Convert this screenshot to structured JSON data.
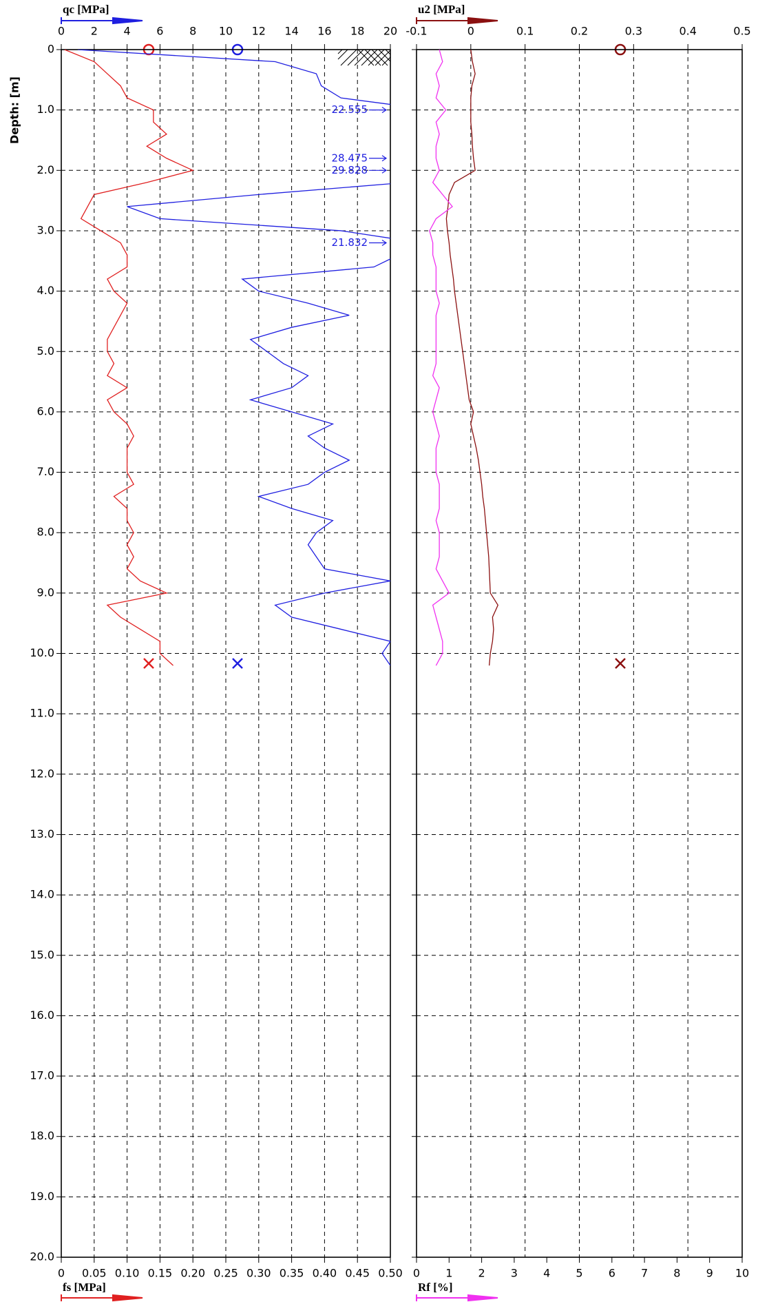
{
  "chart_data": [
    {
      "type": "line",
      "y_label": "Depth: [m]",
      "ylim": [
        0,
        20
      ],
      "yticks": [
        0,
        {
          "value": 1,
          "label": "1.0"
        },
        {
          "value": 2,
          "label": "2.0"
        },
        {
          "value": 3,
          "label": "3.0"
        },
        {
          "value": 4,
          "label": "4.0"
        },
        {
          "value": 5,
          "label": "5.0"
        },
        {
          "value": 6,
          "label": "6.0"
        },
        {
          "value": 7,
          "label": "7.0"
        },
        {
          "value": 8,
          "label": "8.0"
        },
        {
          "value": 9,
          "label": "9.0"
        },
        {
          "value": 10,
          "label": "10.0"
        },
        {
          "value": 11,
          "label": "11.0"
        },
        {
          "value": 12,
          "label": "12.0"
        },
        {
          "value": 13,
          "label": "13.0"
        },
        {
          "value": 14,
          "label": "14.0"
        },
        {
          "value": 15,
          "label": "15.0"
        },
        {
          "value": 16,
          "label": "16.0"
        },
        {
          "value": 17,
          "label": "17.0"
        },
        {
          "value": 18,
          "label": "18.0"
        },
        {
          "value": 19,
          "label": "19.0"
        },
        {
          "value": 20,
          "label": "20.0"
        }
      ],
      "x": [
        0,
        0.2,
        0.4,
        0.6,
        0.8,
        1.0,
        1.2,
        1.4,
        1.6,
        1.8,
        2.0,
        2.2,
        2.4,
        2.6,
        2.8,
        3.0,
        3.2,
        3.4,
        3.6,
        3.8,
        4.0,
        4.2,
        4.4,
        4.6,
        4.8,
        5.0,
        5.2,
        5.4,
        5.6,
        5.8,
        6.0,
        6.2,
        6.4,
        6.6,
        6.8,
        7.0,
        7.2,
        7.4,
        7.6,
        7.8,
        8.0,
        8.2,
        8.4,
        8.6,
        8.8,
        9.0,
        9.2,
        9.4,
        9.6,
        9.8,
        10.0,
        10.2
      ],
      "top_axis": {
        "label": "qc [MPa]",
        "lim": [
          0,
          20
        ],
        "ticks": [
          0,
          2,
          4,
          6,
          8,
          10,
          12,
          14,
          16,
          18,
          20
        ]
      },
      "bottom_axis": {
        "label": "fs [MPa]",
        "lim": [
          0,
          0.5
        ],
        "ticks": [
          0,
          0.05,
          {
            "value": 0.1,
            "label": "0.10"
          },
          0.15,
          {
            "value": 0.2,
            "label": "0.20"
          },
          0.25,
          {
            "value": 0.3,
            "label": "0.30"
          },
          0.35,
          {
            "value": 0.4,
            "label": "0.40"
          },
          0.45,
          {
            "value": 0.5,
            "label": "0.50"
          }
        ]
      },
      "grid": true,
      "series": [
        {
          "axis": "top",
          "color": "#1f1fe0",
          "values": [
            1.0,
            13,
            15.5,
            15.8,
            17,
            22.555,
            22,
            22,
            21,
            28.475,
            29.828,
            21,
            12,
            4,
            6,
            17,
            21.832,
            20.5,
            19,
            11,
            12,
            15,
            17.5,
            14,
            11.5,
            12.5,
            13.5,
            15,
            14,
            11.5,
            14,
            16.5,
            15,
            16,
            17.5,
            16,
            15,
            12,
            14,
            16.5,
            15.5,
            15,
            15.5,
            16,
            20,
            16,
            13,
            14,
            17,
            20,
            19.5,
            20
          ]
        },
        {
          "axis": "bottom",
          "color": "#e02020",
          "values": [
            0.005,
            0.05,
            0.07,
            0.09,
            0.1,
            0.14,
            0.14,
            0.16,
            0.13,
            0.16,
            0.2,
            0.13,
            0.05,
            0.04,
            0.03,
            0.06,
            0.09,
            0.1,
            0.1,
            0.07,
            0.08,
            0.1,
            0.09,
            0.08,
            0.07,
            0.07,
            0.08,
            0.07,
            0.1,
            0.07,
            0.08,
            0.1,
            0.11,
            0.1,
            0.1,
            0.1,
            0.11,
            0.08,
            0.1,
            0.1,
            0.11,
            0.1,
            0.11,
            0.1,
            0.12,
            0.16,
            0.07,
            0.09,
            0.12,
            0.15,
            0.15,
            0.17
          ]
        }
      ],
      "annotations": [
        22.555,
        28.475,
        29.828,
        21.832
      ]
    },
    {
      "type": "line",
      "ylim": [
        0,
        20
      ],
      "x": [
        0,
        0.2,
        0.4,
        0.6,
        0.8,
        1.0,
        1.2,
        1.4,
        1.6,
        1.8,
        2.0,
        2.2,
        2.4,
        2.6,
        2.8,
        3.0,
        3.2,
        3.4,
        3.6,
        3.8,
        4.0,
        4.2,
        4.4,
        4.6,
        4.8,
        5.0,
        5.2,
        5.4,
        5.6,
        5.8,
        6.0,
        6.2,
        6.4,
        6.6,
        6.8,
        7.0,
        7.2,
        7.4,
        7.6,
        7.8,
        8.0,
        8.2,
        8.4,
        8.6,
        8.8,
        9.0,
        9.2,
        9.4,
        9.6,
        9.8,
        10.0,
        10.2
      ],
      "top_axis": {
        "label": "u2 [MPa]",
        "lim": [
          -0.1,
          0.5
        ],
        "ticks": [
          -0.1,
          0,
          0.1,
          0.2,
          0.3,
          0.4,
          0.5
        ]
      },
      "bottom_axis": {
        "label": "Rf [%]",
        "lim": [
          0,
          10
        ],
        "ticks": [
          0,
          1,
          2,
          3,
          4,
          5,
          6,
          7,
          8,
          9,
          10
        ]
      },
      "grid": true,
      "series": [
        {
          "axis": "top",
          "color": "#8b1010",
          "values": [
            0,
            0.003,
            0.008,
            0.002,
            0,
            0,
            0,
            0.002,
            0.003,
            0.005,
            0.008,
            -0.03,
            -0.04,
            -0.042,
            -0.045,
            -0.043,
            -0.04,
            -0.038,
            -0.035,
            -0.032,
            -0.03,
            -0.027,
            -0.024,
            -0.021,
            -0.018,
            -0.015,
            -0.012,
            -0.009,
            -0.006,
            -0.003,
            0.005,
            0,
            0.005,
            0.01,
            0.014,
            0.017,
            0.02,
            0.022,
            0.025,
            0.027,
            0.029,
            0.031,
            0.033,
            0.034,
            0.035,
            0.036,
            0.05,
            0.04,
            0.042,
            0.04,
            0.036,
            0.034
          ]
        },
        {
          "axis": "bottom",
          "color": "#f030f0",
          "values": [
            0.7,
            0.8,
            0.6,
            0.7,
            0.6,
            0.9,
            0.6,
            0.7,
            0.6,
            0.6,
            0.7,
            0.5,
            0.8,
            1.1,
            0.6,
            0.4,
            0.5,
            0.5,
            0.6,
            0.6,
            0.6,
            0.7,
            0.6,
            0.6,
            0.6,
            0.6,
            0.6,
            0.5,
            0.7,
            0.6,
            0.5,
            0.6,
            0.7,
            0.6,
            0.6,
            0.6,
            0.7,
            0.7,
            0.7,
            0.6,
            0.7,
            0.7,
            0.7,
            0.6,
            0.8,
            1.0,
            0.5,
            0.6,
            0.7,
            0.8,
            0.8,
            0.6
          ]
        }
      ]
    }
  ]
}
